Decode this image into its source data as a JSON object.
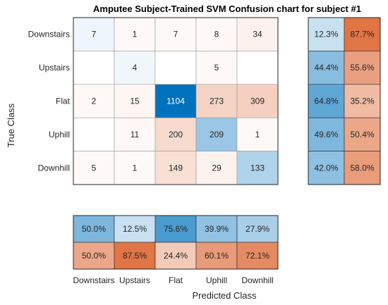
{
  "chart_data": {
    "type": "heatmap",
    "title": "Amputee Subject-Trained SVM Confusion chart for subject #1",
    "xlabel": "Predicted Class",
    "ylabel": "True Class",
    "classes": [
      "Downstairs",
      "Upstairs",
      "Flat",
      "Uphill",
      "Downhill"
    ],
    "matrix": [
      [
        7,
        1,
        7,
        8,
        34
      ],
      [
        null,
        4,
        null,
        5,
        null
      ],
      [
        2,
        15,
        1104,
        273,
        309
      ],
      [
        null,
        11,
        200,
        209,
        1
      ],
      [
        5,
        1,
        149,
        29,
        133
      ]
    ],
    "row_summary": [
      [
        "12.3%",
        "87.7%"
      ],
      [
        "44.4%",
        "55.6%"
      ],
      [
        "64.8%",
        "35.2%"
      ],
      [
        "49.6%",
        "50.4%"
      ],
      [
        "42.0%",
        "58.0%"
      ]
    ],
    "row_summary_values": [
      [
        12.3,
        87.7
      ],
      [
        44.4,
        55.6
      ],
      [
        64.8,
        35.2
      ],
      [
        49.6,
        50.4
      ],
      [
        42.0,
        58.0
      ]
    ],
    "column_summary": [
      [
        "50.0%",
        "12.5%",
        "75.6%",
        "39.9%",
        "27.9%"
      ],
      [
        "50.0%",
        "87.5%",
        "24.4%",
        "60.1%",
        "72.1%"
      ]
    ],
    "column_summary_values": [
      [
        50.0,
        12.5,
        75.6,
        39.9,
        27.9
      ],
      [
        50.0,
        87.5,
        24.4,
        60.1,
        72.1
      ]
    ],
    "colors": {
      "correct": "#0072BD",
      "incorrect": "#D95319"
    }
  }
}
